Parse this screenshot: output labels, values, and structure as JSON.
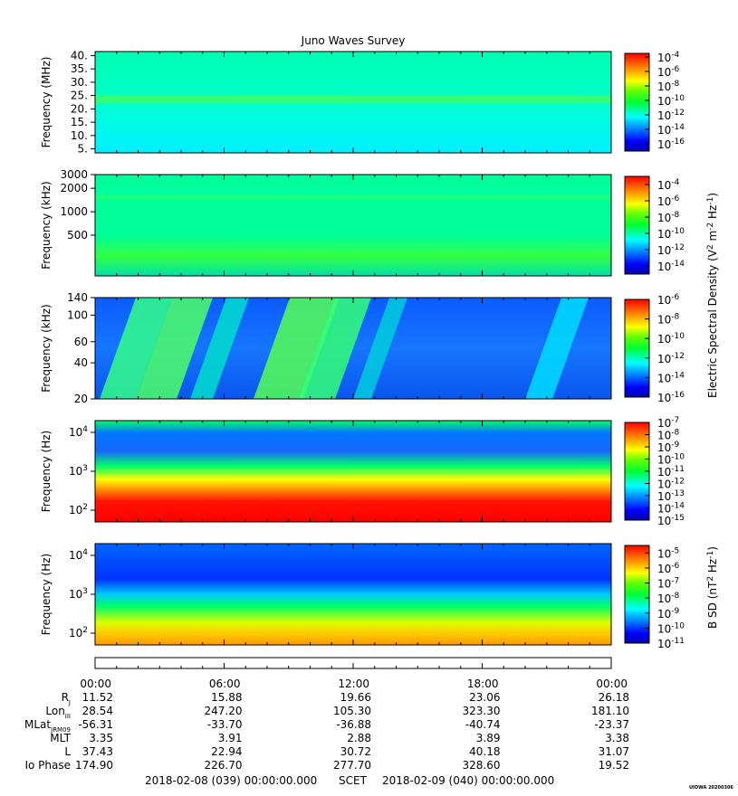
{
  "title": "Juno Waves Survey",
  "panels": [
    {
      "ylabel": "Frequency (MHz)",
      "yticks": [
        {
          "label": "40.",
          "v": 40
        },
        {
          "label": "35.",
          "v": 35
        },
        {
          "label": "30.",
          "v": 30
        },
        {
          "label": "25.",
          "v": 25
        },
        {
          "label": "20.",
          "v": 20
        },
        {
          "label": "15.",
          "v": 15
        },
        {
          "label": "10.",
          "v": 10
        },
        {
          "label": "5.",
          "v": 5
        }
      ],
      "yscale": "linear",
      "ylim": [
        3.5,
        41.5
      ],
      "cbar_ticks": [
        {
          "b": "10",
          "e": "-4",
          "v": -4
        },
        {
          "b": "10",
          "e": "-6",
          "v": -6
        },
        {
          "b": "10",
          "e": "-8",
          "v": -8
        },
        {
          "b": "10",
          "e": "-10",
          "v": -10
        },
        {
          "b": "10",
          "e": "-12",
          "v": -12
        },
        {
          "b": "10",
          "e": "-14",
          "v": -14
        },
        {
          "b": "10",
          "e": "-16",
          "v": -16
        }
      ],
      "cbar_range": [
        -17,
        -3.5
      ]
    },
    {
      "ylabel": "Frequency (kHz)",
      "yticks": [
        {
          "label": "3000",
          "v": 3000
        },
        {
          "label": "2000",
          "v": 2000
        },
        {
          "label": "1000",
          "v": 1000
        },
        {
          "label": "500",
          "v": 500
        }
      ],
      "yscale": "log",
      "ylim": [
        150,
        3000
      ],
      "cbar_ticks": [
        {
          "b": "10",
          "e": "-4",
          "v": -4
        },
        {
          "b": "10",
          "e": "-6",
          "v": -6
        },
        {
          "b": "10",
          "e": "-8",
          "v": -8
        },
        {
          "b": "10",
          "e": "-10",
          "v": -10
        },
        {
          "b": "10",
          "e": "-12",
          "v": -12
        },
        {
          "b": "10",
          "e": "-14",
          "v": -14
        }
      ],
      "cbar_range": [
        -15,
        -3
      ]
    },
    {
      "ylabel": "Frequency (kHz)",
      "yticks": [
        {
          "label": "140",
          "v": 140
        },
        {
          "label": "100",
          "v": 100
        },
        {
          "label": "60",
          "v": 60
        },
        {
          "label": "40",
          "v": 40
        },
        {
          "label": "20",
          "v": 20
        }
      ],
      "yscale": "log",
      "ylim": [
        20,
        140
      ],
      "cbar_ticks": [
        {
          "b": "10",
          "e": "-6",
          "v": -6
        },
        {
          "b": "10",
          "e": "-8",
          "v": -8
        },
        {
          "b": "10",
          "e": "-10",
          "v": -10
        },
        {
          "b": "10",
          "e": "-12",
          "v": -12
        },
        {
          "b": "10",
          "e": "-14",
          "v": -14
        },
        {
          "b": "10",
          "e": "-16",
          "v": -16
        }
      ],
      "cbar_range": [
        -16,
        -6
      ]
    },
    {
      "ylabel": "Frequency (Hz)",
      "yticks": [
        {
          "b": "10",
          "e": "4",
          "v": 10000
        },
        {
          "b": "10",
          "e": "3",
          "v": 1000
        },
        {
          "b": "10",
          "e": "2",
          "v": 100
        }
      ],
      "yscale": "log",
      "ylim": [
        50,
        20000
      ],
      "cbar_ticks": [
        {
          "b": "10",
          "e": "-7",
          "v": -7
        },
        {
          "b": "10",
          "e": "-8",
          "v": -8
        },
        {
          "b": "10",
          "e": "-9",
          "v": -9
        },
        {
          "b": "10",
          "e": "-10",
          "v": -10
        },
        {
          "b": "10",
          "e": "-11",
          "v": -11
        },
        {
          "b": "10",
          "e": "-12",
          "v": -12
        },
        {
          "b": "10",
          "e": "-13",
          "v": -13
        },
        {
          "b": "10",
          "e": "-14",
          "v": -14
        },
        {
          "b": "10",
          "e": "-15",
          "v": -15
        }
      ],
      "cbar_range": [
        -15,
        -7
      ]
    },
    {
      "ylabel": "Frequency (Hz)",
      "yticks": [
        {
          "b": "10",
          "e": "4",
          "v": 10000
        },
        {
          "b": "10",
          "e": "3",
          "v": 1000
        },
        {
          "b": "10",
          "e": "2",
          "v": 100
        }
      ],
      "yscale": "log",
      "ylim": [
        50,
        20000
      ],
      "cbar_ticks": [
        {
          "b": "10",
          "e": "-5",
          "v": -5
        },
        {
          "b": "10",
          "e": "-6",
          "v": -6
        },
        {
          "b": "10",
          "e": "-7",
          "v": -7
        },
        {
          "b": "10",
          "e": "-8",
          "v": -8
        },
        {
          "b": "10",
          "e": "-9",
          "v": -9
        },
        {
          "b": "10",
          "e": "-10",
          "v": -10
        },
        {
          "b": "10",
          "e": "-11",
          "v": -11
        }
      ],
      "cbar_range": [
        -11,
        -4.5
      ]
    }
  ],
  "cbar_labels": {
    "electric": {
      "t1": "Electric Spectral Density (V",
      "s1": "2",
      "t2": " m",
      "s2": "-2",
      "t3": " Hz",
      "s3": "-1",
      "t4": ")"
    },
    "magnetic": {
      "t1": "B SD (nT",
      "s1": "2",
      "t2": " Hz",
      "s2": "-1",
      "t3": ")"
    }
  },
  "time_ticks": [
    "00:00",
    "06:00",
    "12:00",
    "18:00",
    "00:00"
  ],
  "ephemeris": [
    {
      "label": "R",
      "sub": "J",
      "values": [
        "11.52",
        "15.88",
        "19.66",
        "23.06",
        "26.18"
      ]
    },
    {
      "label": "Lon",
      "sub": "III",
      "values": [
        "28.54",
        "247.20",
        "105.30",
        "323.30",
        "181.10"
      ]
    },
    {
      "label": "MLat",
      "sub": "JRM09",
      "values": [
        "-56.31",
        "-33.70",
        "-36.88",
        "-40.74",
        "-23.37"
      ]
    },
    {
      "label": "MLT",
      "sub": "",
      "values": [
        "3.35",
        "3.91",
        "2.88",
        "3.89",
        "3.38"
      ]
    },
    {
      "label": "L",
      "sub": "",
      "values": [
        "37.43",
        "22.94",
        "30.72",
        "40.18",
        "31.07"
      ]
    },
    {
      "label": "Io Phase",
      "sub": "",
      "values": [
        "174.90",
        "226.70",
        "277.70",
        "328.60",
        "19.52"
      ]
    }
  ],
  "footer": {
    "start": "2018-02-08 (039) 00:00:00.000",
    "scet": "SCET",
    "end": "2018-02-09 (040) 00:00:00.000"
  },
  "stamp": "UIOWA 20200306",
  "chart_data": {
    "type": "heatmap",
    "title": "Juno Waves Survey",
    "x_range": [
      "2018-02-08 00:00",
      "2018-02-09 00:00"
    ],
    "colormap": "rainbow (blue low, red high)",
    "panels": [
      {
        "ylabel": "Frequency (MHz)",
        "ylim": [
          3.5,
          41.5
        ],
        "colorbar_log10": [
          -17,
          -4
        ],
        "note": "mostly uniform ~1e-12 to 1e-11, band near 21 MHz"
      },
      {
        "ylabel": "Frequency (kHz)",
        "ylim": [
          150,
          3000
        ],
        "colorbar_log10": [
          -15,
          -4
        ],
        "note": "~1e-11 background, brighter near 1700 kHz and below ~300 kHz"
      },
      {
        "ylabel": "Frequency (kHz)",
        "ylim": [
          20,
          140
        ],
        "colorbar_log10": [
          -16,
          -6
        ],
        "note": "slanted emission bands ~1e-11 during 00:00-09:00, quiet ~1e-14 afterwards"
      },
      {
        "ylabel": "Frequency (Hz)",
        "ylim": [
          50,
          20000
        ],
        "colorbar_log10": [
          -15,
          -7
        ],
        "note": "intense ~1e-7 below ~300 Hz, ~1e-13 above 5 kHz"
      },
      {
        "ylabel": "Frequency (Hz)",
        "ylim": [
          50,
          20000
        ],
        "colorbar_log10": [
          -11,
          -5
        ],
        "note": "~1e-6 below 200 Hz, ~1e-10 above 3 kHz"
      }
    ]
  }
}
